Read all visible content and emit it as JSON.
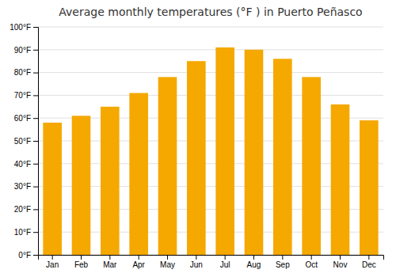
{
  "chart_data": {
    "type": "bar",
    "title": "Average monthly temperatures (°F ) in Puerto Peñasco",
    "categories": [
      "Jan",
      "Feb",
      "Mar",
      "Apr",
      "May",
      "Jun",
      "Jul",
      "Aug",
      "Sep",
      "Oct",
      "Nov",
      "Dec"
    ],
    "values": [
      58,
      61,
      65,
      71,
      78,
      85,
      91,
      90,
      86,
      78,
      66,
      59
    ],
    "color": "#F5A800",
    "ylim": [
      0,
      100
    ],
    "yticks": [
      {
        "value": 0,
        "label": "0°F"
      },
      {
        "value": 10,
        "label": "10°F"
      },
      {
        "value": 20,
        "label": "20°F"
      },
      {
        "value": 30,
        "label": "30°F"
      },
      {
        "value": 40,
        "label": "40°F"
      },
      {
        "value": 50,
        "label": "50°F"
      },
      {
        "value": 60,
        "label": "60°F"
      },
      {
        "value": 70,
        "label": "70°F"
      },
      {
        "value": 80,
        "label": "80°F"
      },
      {
        "value": 90,
        "label": "90°F"
      },
      {
        "value": 100,
        "label": "100°F"
      }
    ],
    "grid": true
  }
}
